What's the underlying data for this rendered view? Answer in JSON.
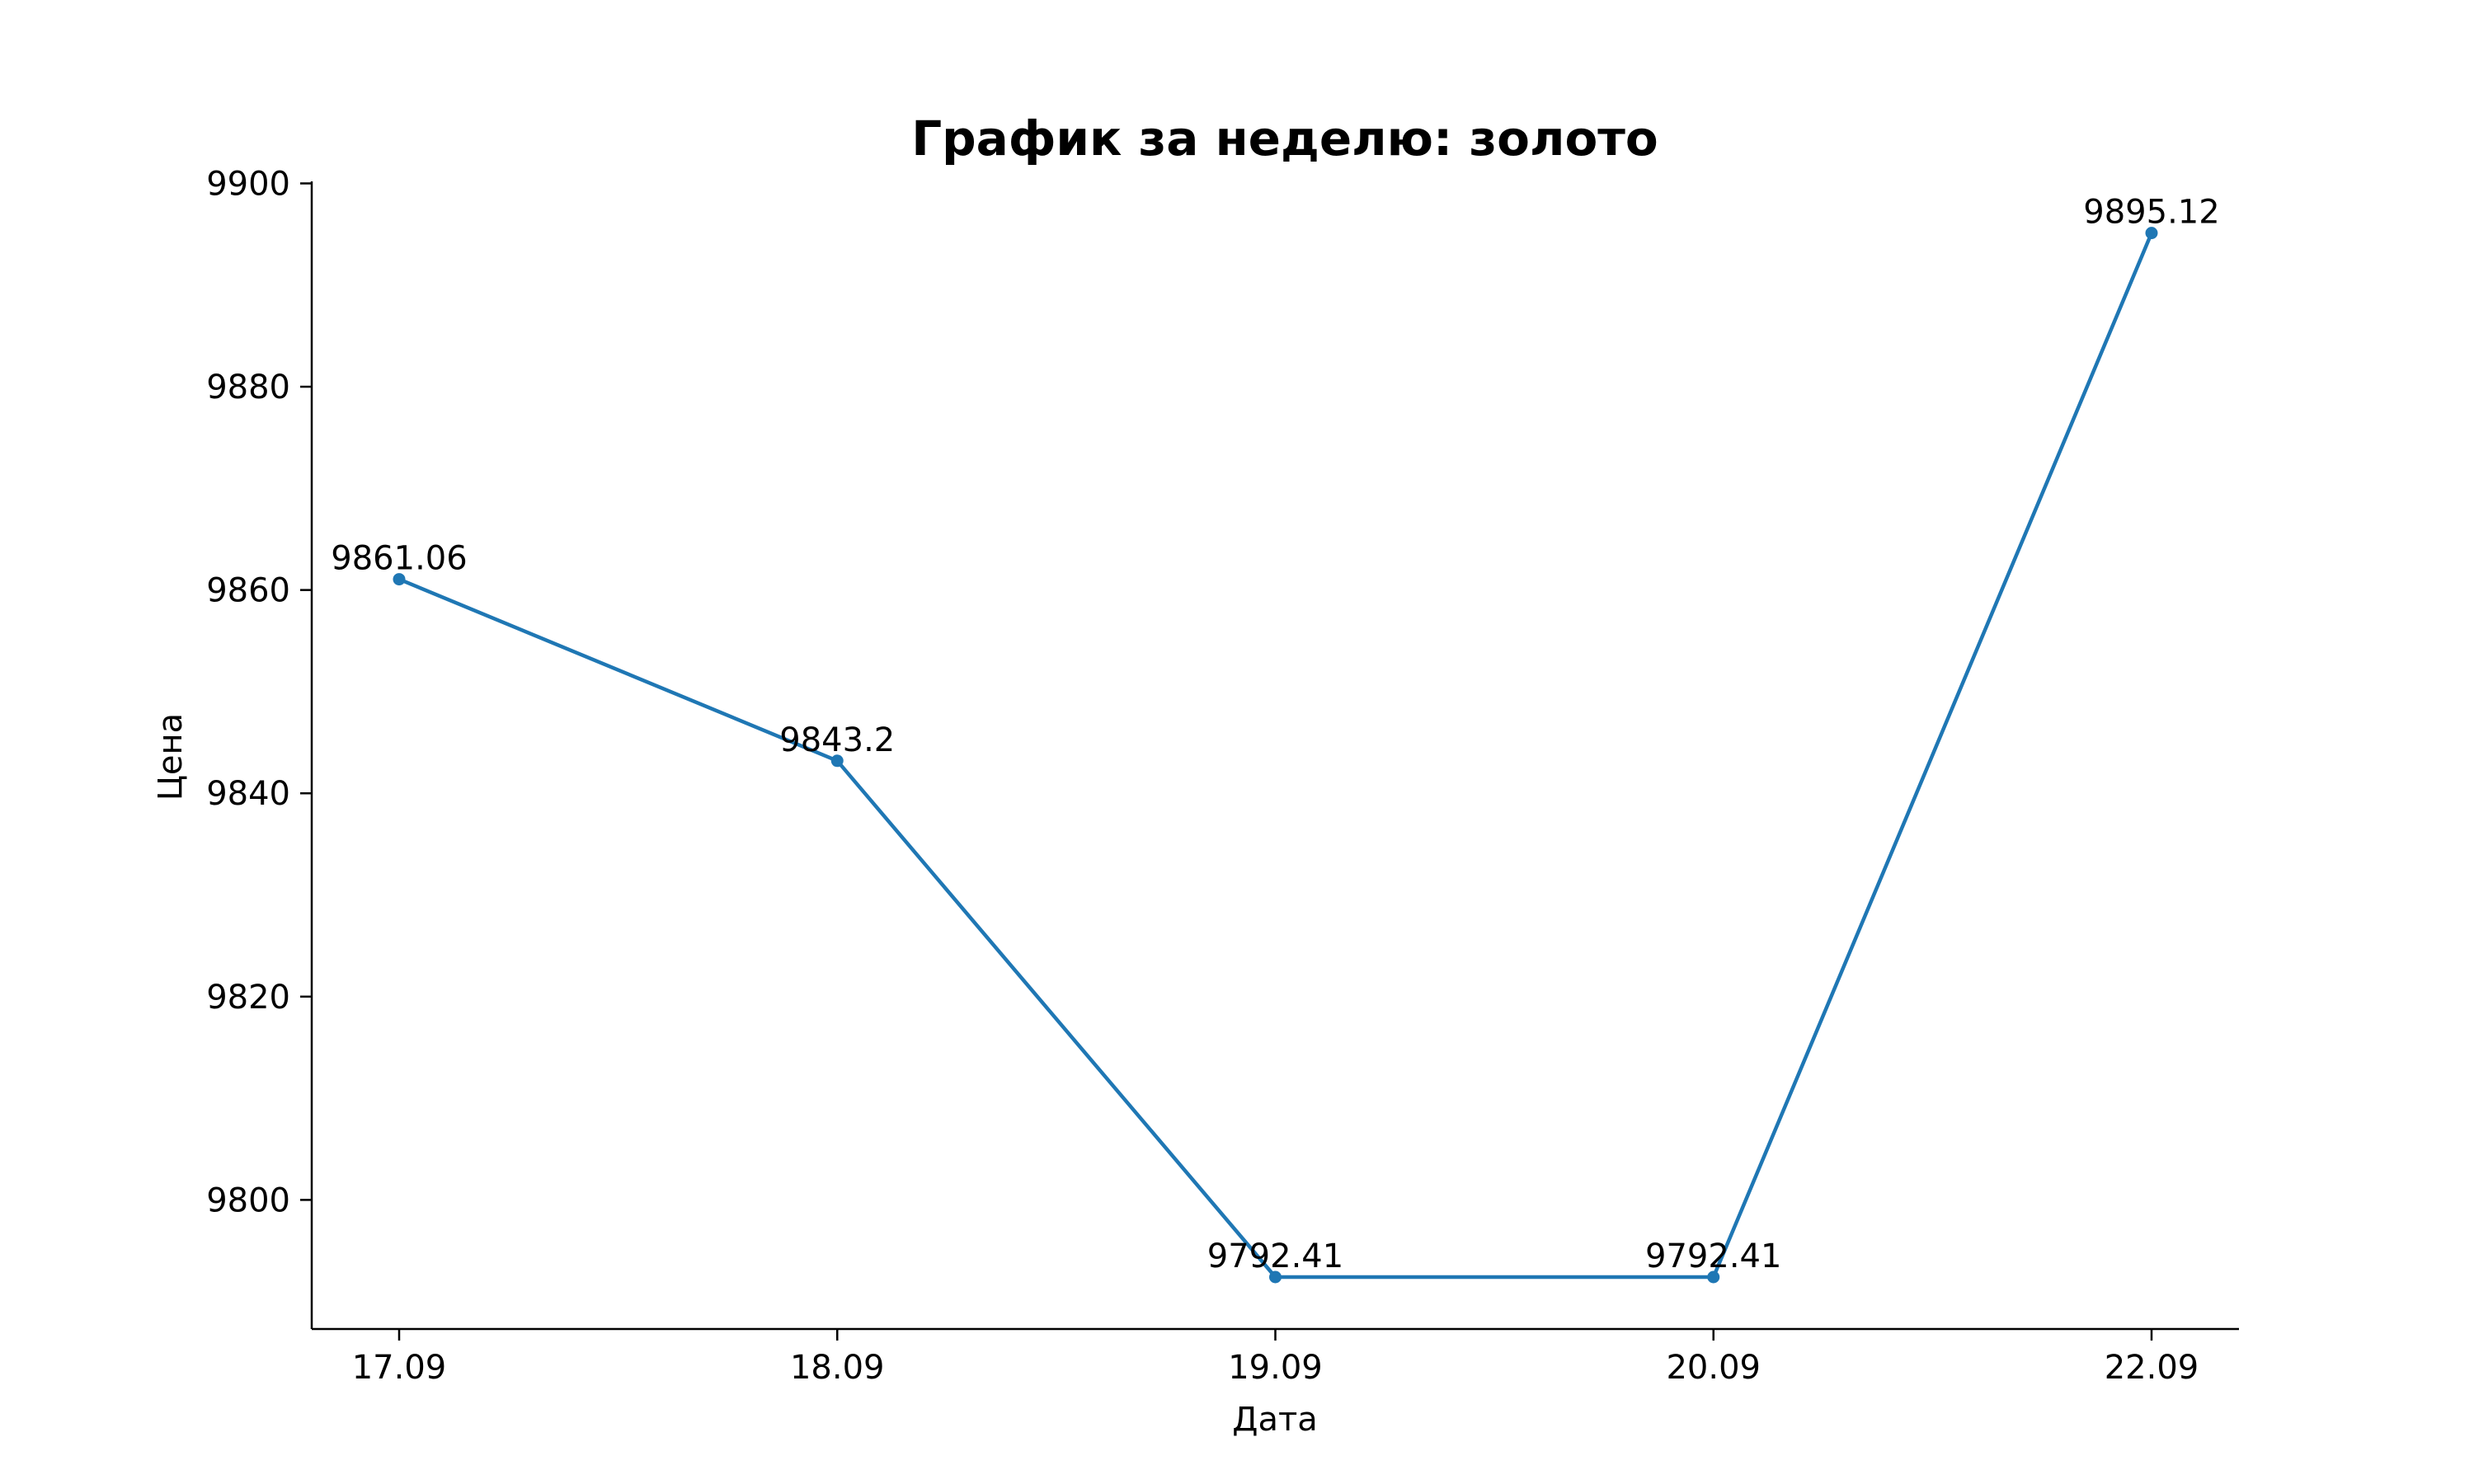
{
  "chart_data": {
    "type": "line",
    "title": "График за неделю: золото",
    "xlabel": "Дата",
    "ylabel": "Цена",
    "categories": [
      "17.09",
      "18.09",
      "19.09",
      "20.09",
      "22.09"
    ],
    "series": [
      {
        "values": [
          9861.06,
          9843.2,
          9792.41,
          9792.41,
          9895.12
        ]
      }
    ],
    "data_labels": [
      "9861.06",
      "9843.2",
      "9792.41",
      "9792.41",
      "9895.12"
    ],
    "y_ticks": [
      9800,
      9820,
      9840,
      9860,
      9880,
      9900
    ],
    "ylim": [
      9787.3,
      9900.2
    ],
    "grid": false,
    "line_color": "#1f77b4",
    "marker": "circle"
  }
}
